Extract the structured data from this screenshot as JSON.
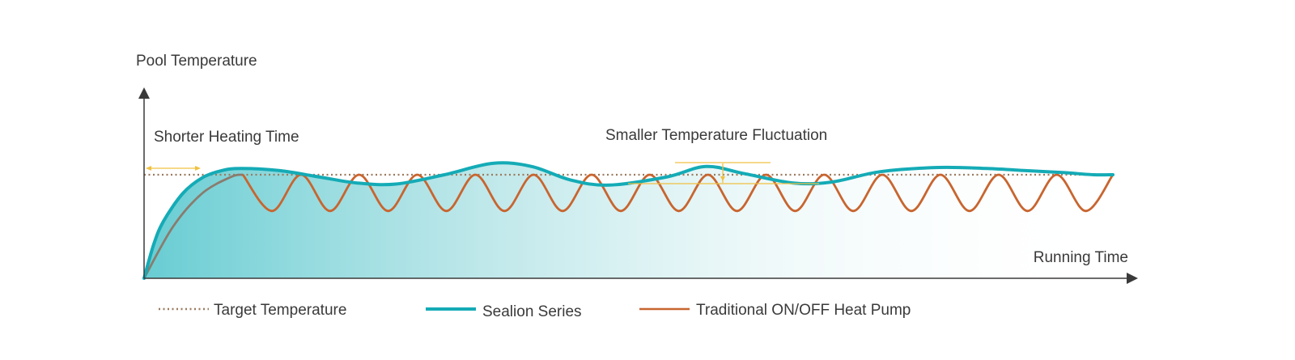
{
  "chart_data": {
    "type": "line",
    "title": "",
    "xlabel": "Running Time",
    "ylabel": "Pool Temperature",
    "axis_ticks": false,
    "grid": false,
    "legend_position": "bottom-left",
    "annotations": [
      "Shorter Heating Time",
      "Smaller Temperature Fluctuation"
    ],
    "series": [
      {
        "name": "Target Temperature",
        "style": "dotted",
        "color": "#9b7a5e",
        "x": [
          0,
          100
        ],
        "y": [
          100,
          100
        ]
      },
      {
        "name": "Sealion Series",
        "style": "solid",
        "color": "#14abb6",
        "x": [
          0,
          1,
          2,
          4,
          6,
          8,
          10,
          14,
          18,
          22,
          26,
          31,
          36,
          40,
          44,
          48,
          54,
          58,
          62,
          67,
          71,
          76,
          82,
          87,
          91,
          95,
          98,
          100
        ],
        "y": [
          0,
          33,
          55,
          82,
          97,
          104,
          106,
          104,
          98,
          92,
          91,
          100,
          111,
          108,
          95,
          90,
          98,
          108,
          101,
          92,
          93,
          103,
          107,
          106,
          104,
          102,
          100,
          100
        ]
      },
      {
        "name": "Traditional ON/OFF Heat Pump",
        "style": "solid",
        "color": "#c8652f",
        "x": [
          0,
          3,
          6,
          9,
          10.2,
          13.2,
          16.2,
          19.2,
          22.2,
          25.2,
          28.2,
          31.2,
          34.2,
          37.2,
          40.2,
          43.2,
          46.2,
          49.2,
          52.2,
          55.2,
          58.2,
          61.2,
          64.2,
          67.2,
          70.2,
          73.2,
          76.2,
          79.2,
          82.2,
          85.2,
          88.2,
          91.2,
          94.2,
          97.2,
          100
        ],
        "y": [
          0,
          50,
          82,
          98,
          100,
          65,
          100,
          65,
          100,
          65,
          100,
          65,
          100,
          65,
          100,
          65,
          100,
          65,
          100,
          65,
          100,
          65,
          100,
          65,
          100,
          65,
          100,
          65,
          100,
          65,
          100,
          65,
          100,
          65,
          100
        ]
      }
    ]
  }
}
